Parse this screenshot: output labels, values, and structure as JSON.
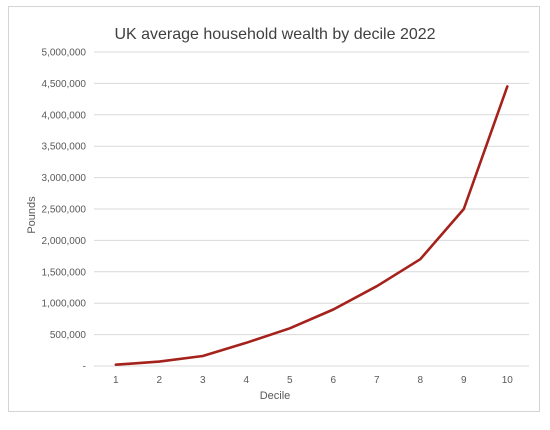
{
  "chart_data": {
    "type": "line",
    "title": "UK average household wealth by decile 2022",
    "xlabel": "Decile",
    "ylabel": "Pounds",
    "x": [
      "1",
      "2",
      "3",
      "4",
      "5",
      "6",
      "7",
      "8",
      "9",
      "10"
    ],
    "series": [
      {
        "values": [
          20000,
          70000,
          160000,
          370000,
          600000,
          900000,
          1270000,
          1700000,
          2500000,
          4450000
        ]
      }
    ],
    "ylim": [
      0,
      5000000
    ],
    "y_ticks": [
      "-",
      "500,000",
      "1,000,000",
      "1,500,000",
      "2,000,000",
      "2,500,000",
      "3,000,000",
      "3,500,000",
      "4,000,000",
      "4,500,000",
      "5,000,000"
    ],
    "grid": true,
    "legend": "none",
    "colors": {
      "series": "#a5221c",
      "grid": "#d9d9d9",
      "text": "#595959"
    }
  }
}
